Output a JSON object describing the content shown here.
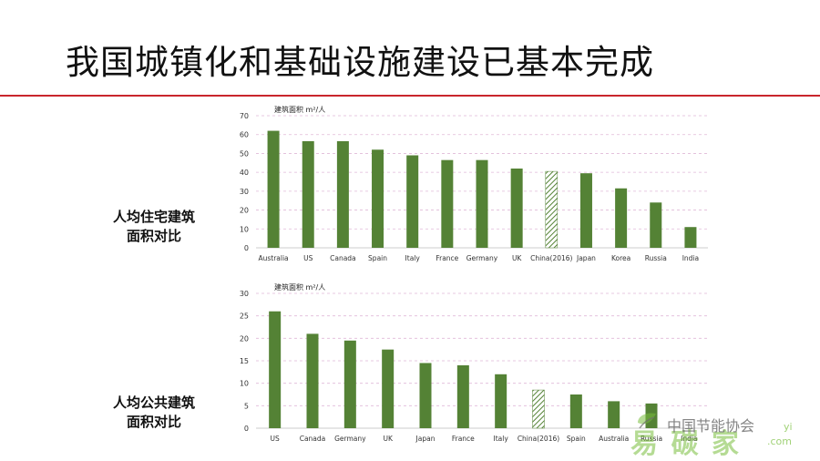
{
  "slide": {
    "title": "我国城镇化和基础设施建设已基本完成"
  },
  "colors": {
    "bar": "#548235",
    "title_rule": "#c9252c",
    "grid": "#e0b9d8"
  },
  "side_labels": {
    "residential": [
      "人均住宅建筑",
      "面积对比"
    ],
    "public": [
      "人均公共建筑",
      "面积对比"
    ]
  },
  "watermark": {
    "org": "中国节能协会",
    "brand": "易 碳 家",
    "yi": "yi",
    "com": ".com"
  },
  "chart_data": [
    {
      "type": "bar",
      "unit_label": "建筑面积 m²/人",
      "categories": [
        "Australia",
        "US",
        "Canada",
        "Spain",
        "Italy",
        "France",
        "Germany",
        "UK",
        "China(2016)",
        "Japan",
        "Korea",
        "Russia",
        "India"
      ],
      "values": [
        62,
        56.5,
        56.5,
        52,
        49,
        46.5,
        46.5,
        42,
        40.5,
        39.5,
        31.5,
        24,
        11
      ],
      "hatched_category": "China(2016)",
      "ylim": [
        0,
        70
      ],
      "yticks": [
        0,
        10,
        20,
        30,
        40,
        50,
        60,
        70
      ],
      "grid": true
    },
    {
      "type": "bar",
      "unit_label": "建筑面积 m²/人",
      "categories": [
        "US",
        "Canada",
        "Germany",
        "UK",
        "Japan",
        "France",
        "Italy",
        "China(2016)",
        "Spain",
        "Australia",
        "Russia",
        "India"
      ],
      "values": [
        26,
        21,
        19.5,
        17.5,
        14.5,
        14,
        12,
        8.5,
        7.5,
        6,
        5.5,
        0
      ],
      "hatched_category": "China(2016)",
      "ylim": [
        0,
        30
      ],
      "yticks": [
        0,
        5,
        10,
        15,
        20,
        25,
        30
      ],
      "grid": true
    }
  ]
}
